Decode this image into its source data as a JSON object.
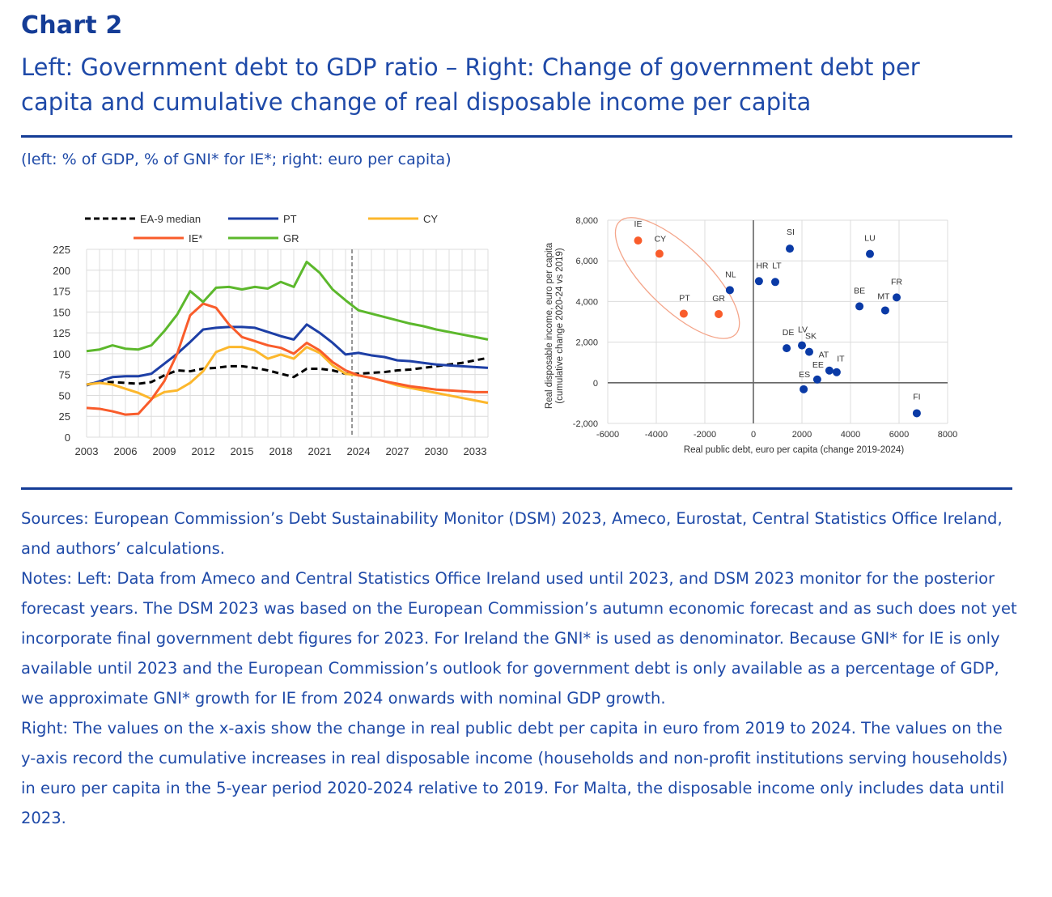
{
  "header": {
    "chart_number": "Chart 2",
    "title_line1": "Left: Government debt to GDP ratio – Right: Change of government debt per",
    "title_line2": "capita and cumulative change of real disposable income per capita",
    "units": "(left: % of GDP, % of GNI* for IE*; right: euro per capita)"
  },
  "notes": {
    "sources": "Sources: European Commission’s Debt Sustainability Monitor (DSM) 2023, Ameco, Eurostat, Central Statistics Office Ireland, and authors’ calculations.",
    "notes_left": "Notes: Left: Data from Ameco and Central Statistics Office Ireland used until 2023, and DSM 2023 monitor for the posterior forecast years. The DSM 2023 was based on the European Commission’s autumn economic forecast and as such does not yet incorporate final government debt figures for 2023. For Ireland the GNI* is used as denominator. Because GNI* for IE is only available until 2023 and the European Commission’s outlook for government debt is only available as a percentage of GDP, we approximate GNI* growth for IE from 2024 onwards with nominal GDP growth.",
    "notes_right": "Right: The values on the x-axis show the change in real public debt per capita in euro from 2019 to 2024. The values on the y-axis record the cumulative increases in real disposable income (households and non-profit institutions serving households) in euro per capita in the 5-year period 2020-2024 relative to 2019. For Malta, the disposable income only includes data until 2023."
  },
  "colors": {
    "text_blue": "#1f4aa8",
    "rule_blue": "#143c96"
  },
  "chart_data": [
    {
      "type": "line",
      "title": "Government debt to GDP ratio",
      "xlabel": "",
      "ylabel": "",
      "x": [
        2003,
        2004,
        2005,
        2006,
        2007,
        2008,
        2009,
        2010,
        2011,
        2012,
        2013,
        2014,
        2015,
        2016,
        2017,
        2018,
        2019,
        2020,
        2021,
        2022,
        2023,
        2024,
        2025,
        2026,
        2027,
        2028,
        2029,
        2030,
        2031,
        2032,
        2033,
        2034
      ],
      "x_ticks": [
        "2003",
        "2006",
        "2009",
        "2012",
        "2015",
        "2018",
        "2021",
        "2024",
        "2027",
        "2030",
        "2033"
      ],
      "y_ticks": [
        "0",
        "25",
        "50",
        "75",
        "100",
        "125",
        "150",
        "175",
        "200",
        "225"
      ],
      "ylim": [
        0,
        225
      ],
      "grid": true,
      "legend_position": "top",
      "forecast_divider_year": 2023.5,
      "series": [
        {
          "name": "EA-9 median",
          "color": "#000000",
          "dashed": true,
          "values": [
            63,
            66,
            66,
            65,
            64,
            66,
            74,
            80,
            79,
            82,
            83,
            85,
            85,
            83,
            80,
            76,
            72,
            82,
            82,
            80,
            76,
            76,
            77,
            78,
            80,
            81,
            83,
            85,
            87,
            89,
            92,
            95
          ]
        },
        {
          "name": "PT",
          "color": "#1d3fa6",
          "dashed": false,
          "values": [
            62,
            67,
            72,
            73,
            73,
            76,
            88,
            100,
            114,
            129,
            131,
            132,
            132,
            131,
            126,
            121,
            117,
            135,
            125,
            113,
            99,
            101,
            98,
            96,
            92,
            91,
            89,
            87,
            86,
            85,
            84,
            83
          ]
        },
        {
          "name": "CY",
          "color": "#fcb72c",
          "dashed": false,
          "values": [
            63,
            65,
            63,
            58,
            53,
            46,
            54,
            56,
            65,
            79,
            102,
            108,
            108,
            104,
            94,
            99,
            94,
            108,
            101,
            86,
            76,
            74,
            71,
            67,
            62,
            59,
            56,
            53,
            50,
            47,
            44,
            41
          ]
        },
        {
          "name": "IE*",
          "color": "#f95c2b",
          "dashed": false,
          "values": [
            35,
            34,
            31,
            27,
            28,
            45,
            67,
            100,
            146,
            160,
            155,
            135,
            120,
            115,
            110,
            107,
            100,
            113,
            104,
            90,
            80,
            74,
            71,
            67,
            64,
            61,
            59,
            57,
            56,
            55,
            54,
            54
          ]
        },
        {
          "name": "GR",
          "color": "#5cb82c",
          "dashed": false,
          "values": [
            103,
            105,
            110,
            106,
            105,
            110,
            127,
            147,
            175,
            162,
            179,
            180,
            177,
            180,
            178,
            186,
            180,
            210,
            197,
            177,
            164,
            152,
            148,
            144,
            140,
            136,
            133,
            129,
            126,
            123,
            120,
            117
          ]
        }
      ]
    },
    {
      "type": "scatter",
      "title": "Change of government debt per capita vs cumulative change of real disposable income per capita",
      "xlabel": "Real public debt, euro per capita (change 2019-2024)",
      "ylabel": "Real disposable income, euro per capita (cumulative change 2020-24 vs 2019)",
      "ylabel_line1": "Real disposable income, euro per capita",
      "ylabel_line2": "(cumulative change 2020-24 vs 2019)",
      "xlim": [
        -6000,
        8000
      ],
      "ylim": [
        -2000,
        8000
      ],
      "x_ticks": [
        "-6000",
        "-4000",
        "-2000",
        "0",
        "2000",
        "4000",
        "6000",
        "8000"
      ],
      "y_ticks": [
        "-2,000",
        "0",
        "2,000",
        "4,000",
        "6,000",
        "8,000"
      ],
      "grid": true,
      "highlight_ellipse_around": [
        "IE",
        "CY",
        "PT",
        "GR"
      ],
      "points": [
        {
          "label": "IE",
          "x": -4750,
          "y": 7000,
          "group": "highlight",
          "color": "#f95c2b"
        },
        {
          "label": "CY",
          "x": -3870,
          "y": 6350,
          "group": "highlight",
          "color": "#f95c2b"
        },
        {
          "label": "PT",
          "x": -2870,
          "y": 3400,
          "group": "highlight",
          "color": "#f95c2b"
        },
        {
          "label": "GR",
          "x": -1430,
          "y": 3380,
          "group": "highlight",
          "color": "#f95c2b"
        },
        {
          "label": "NL",
          "x": -970,
          "y": 4560,
          "group": "other",
          "color": "#0a3aa6"
        },
        {
          "label": "HR",
          "x": 230,
          "y": 5000,
          "group": "other",
          "color": "#0a3aa6"
        },
        {
          "label": "LT",
          "x": 900,
          "y": 4960,
          "group": "other",
          "color": "#0a3aa6"
        },
        {
          "label": "SI",
          "x": 1500,
          "y": 6600,
          "group": "other",
          "color": "#0a3aa6"
        },
        {
          "label": "LU",
          "x": 4800,
          "y": 6340,
          "group": "other",
          "color": "#0a3aa6"
        },
        {
          "label": "BE",
          "x": 4370,
          "y": 3760,
          "group": "other",
          "color": "#0a3aa6"
        },
        {
          "label": "MT",
          "x": 5430,
          "y": 3560,
          "group": "other",
          "color": "#0a3aa6"
        },
        {
          "label": "FR",
          "x": 5900,
          "y": 4200,
          "group": "other",
          "color": "#0a3aa6"
        },
        {
          "label": "DE",
          "x": 1370,
          "y": 1700,
          "group": "other",
          "color": "#0a3aa6"
        },
        {
          "label": "LV",
          "x": 2000,
          "y": 1840,
          "group": "other",
          "color": "#0a3aa6"
        },
        {
          "label": "SK",
          "x": 2300,
          "y": 1520,
          "group": "other",
          "color": "#0a3aa6"
        },
        {
          "label": "AT",
          "x": 3130,
          "y": 600,
          "group": "other",
          "color": "#0a3aa6"
        },
        {
          "label": "IT",
          "x": 3430,
          "y": 520,
          "group": "other",
          "color": "#0a3aa6"
        },
        {
          "label": "EE",
          "x": 2630,
          "y": 160,
          "group": "other",
          "color": "#0a3aa6"
        },
        {
          "label": "ES",
          "x": 2070,
          "y": -320,
          "group": "other",
          "color": "#0a3aa6"
        },
        {
          "label": "FI",
          "x": 6730,
          "y": -1500,
          "group": "other",
          "color": "#0a3aa6"
        }
      ]
    }
  ]
}
